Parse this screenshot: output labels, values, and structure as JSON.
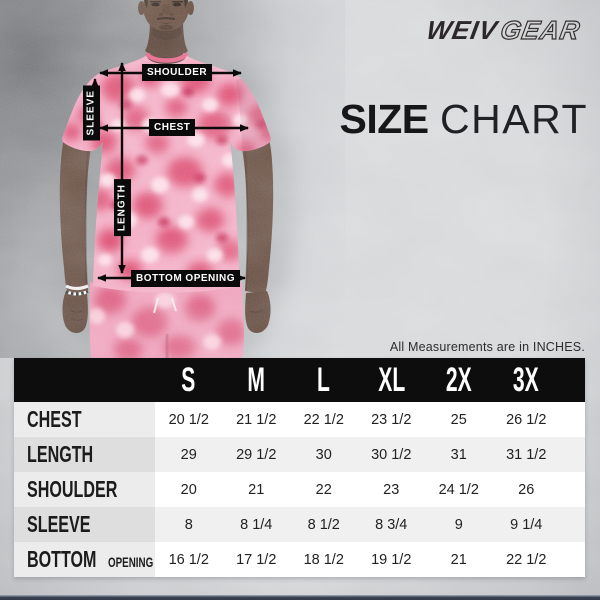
{
  "brand": {
    "word1": "WEIV",
    "word2": "GEAR"
  },
  "title": {
    "bold": "SIZE",
    "light": "CHART"
  },
  "note": "All Measurements are in INCHES.",
  "annotations": {
    "shoulder": "SHOULDER",
    "sleeve": "SLEEVE",
    "chest": "CHEST",
    "length": "LENGTH",
    "bottom_opening": "BOTTOM OPENING"
  },
  "table": {
    "columns": [
      "S",
      "M",
      "L",
      "XL",
      "2X",
      "3X"
    ],
    "rows": [
      {
        "label": "CHEST",
        "values": [
          "20 1/2",
          "21 1/2",
          "22 1/2",
          "23 1/2",
          "25",
          "26 1/2"
        ]
      },
      {
        "label": "LENGTH",
        "values": [
          "29",
          "29 1/2",
          "30",
          "30 1/2",
          "31",
          "31 1/2"
        ]
      },
      {
        "label": "SHOULDER",
        "values": [
          "20",
          "21",
          "22",
          "23",
          "24 1/2",
          "26"
        ]
      },
      {
        "label": "SLEEVE",
        "values": [
          "8",
          "8 1/4",
          "8 1/2",
          "8 3/4",
          "9",
          "9 1/4"
        ]
      },
      {
        "label": "BOTTOM",
        "label_small": "OPENING",
        "values": [
          "16 1/2",
          "17 1/2",
          "18 1/2",
          "19 1/2",
          "21",
          "22 1/2"
        ]
      }
    ]
  },
  "chart_data": {
    "type": "table",
    "title": "SIZE CHART",
    "unit": "INCHES",
    "columns": [
      "S",
      "M",
      "L",
      "XL",
      "2X",
      "3X"
    ],
    "rows": [
      {
        "measurement": "CHEST",
        "values": [
          20.5,
          21.5,
          22.5,
          23.5,
          25,
          26.5
        ]
      },
      {
        "measurement": "LENGTH",
        "values": [
          29,
          29.5,
          30,
          30.5,
          31,
          31.5
        ]
      },
      {
        "measurement": "SHOULDER",
        "values": [
          20,
          21,
          22,
          23,
          24.5,
          26
        ]
      },
      {
        "measurement": "SLEEVE",
        "values": [
          8,
          8.25,
          8.5,
          8.75,
          9,
          9.25
        ]
      },
      {
        "measurement": "BOTTOM OPENING",
        "values": [
          16.5,
          17.5,
          18.5,
          19.5,
          21,
          22.5
        ]
      }
    ]
  },
  "colors": {
    "header_bg": "#0d0d0d",
    "tee_pink": "#f3a9c2",
    "tee_crimson": "#d62a55",
    "backdrop_gray": "#a9acae",
    "bottom_bar": "#3a4252"
  }
}
